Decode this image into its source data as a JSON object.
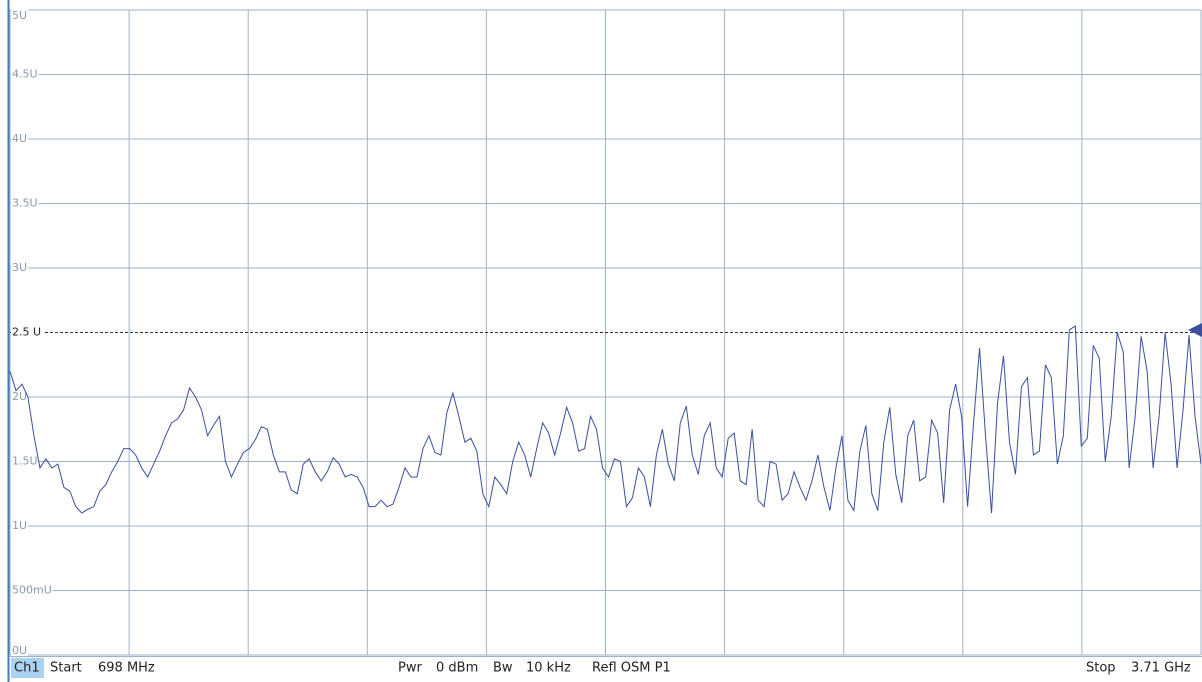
{
  "chart_data": {
    "type": "line",
    "ylim": [
      0,
      5
    ],
    "yticks": [
      {
        "value": 0,
        "label": "0U"
      },
      {
        "value": 0.5,
        "label": "500mU"
      },
      {
        "value": 1,
        "label": "1U"
      },
      {
        "value": 1.5,
        "label": "1.5U"
      },
      {
        "value": 2,
        "label": "2U"
      },
      {
        "value": 3,
        "label": "3U"
      },
      {
        "value": 3.5,
        "label": "3.5U"
      },
      {
        "value": 4,
        "label": "4U"
      },
      {
        "value": 4.5,
        "label": "4.5U"
      },
      {
        "value": 5,
        "label": "5U"
      }
    ],
    "grid": true,
    "x_divisions": 10,
    "limit_line": {
      "value": 2.5,
      "label": "2.5 U"
    },
    "color": "#3b4f9c",
    "values": [
      2.2,
      2.05,
      2.1,
      2.0,
      1.7,
      1.45,
      1.52,
      1.45,
      1.48,
      1.3,
      1.27,
      1.15,
      1.1,
      1.13,
      1.15,
      1.27,
      1.32,
      1.42,
      1.5,
      1.6,
      1.6,
      1.55,
      1.45,
      1.38,
      1.48,
      1.58,
      1.7,
      1.8,
      1.83,
      1.9,
      2.07,
      2.0,
      1.9,
      1.7,
      1.78,
      1.85,
      1.5,
      1.38,
      1.48,
      1.57,
      1.6,
      1.67,
      1.77,
      1.75,
      1.55,
      1.42,
      1.42,
      1.28,
      1.25,
      1.48,
      1.52,
      1.42,
      1.35,
      1.42,
      1.53,
      1.48,
      1.38,
      1.4,
      1.38,
      1.3,
      1.15,
      1.15,
      1.2,
      1.15,
      1.17,
      1.3,
      1.45,
      1.38,
      1.38,
      1.6,
      1.7,
      1.57,
      1.55,
      1.88,
      2.03,
      1.85,
      1.65,
      1.68,
      1.58,
      1.25,
      1.15,
      1.38,
      1.32,
      1.25,
      1.5,
      1.65,
      1.55,
      1.38,
      1.6,
      1.8,
      1.72,
      1.55,
      1.72,
      1.92,
      1.8,
      1.58,
      1.6,
      1.85,
      1.75,
      1.45,
      1.38,
      1.52,
      1.5,
      1.15,
      1.22,
      1.45,
      1.38,
      1.15,
      1.55,
      1.75,
      1.48,
      1.35,
      1.8,
      1.93,
      1.55,
      1.4,
      1.7,
      1.8,
      1.45,
      1.38,
      1.68,
      1.72,
      1.35,
      1.32,
      1.75,
      1.2,
      1.15,
      1.5,
      1.48,
      1.2,
      1.25,
      1.42,
      1.3,
      1.2,
      1.35,
      1.55,
      1.3,
      1.12,
      1.45,
      1.7,
      1.2,
      1.12,
      1.58,
      1.78,
      1.25,
      1.12,
      1.65,
      1.92,
      1.4,
      1.18,
      1.7,
      1.82,
      1.35,
      1.38,
      1.82,
      1.72,
      1.18,
      1.9,
      2.1,
      1.85,
      1.15,
      1.8,
      2.38,
      1.7,
      1.1,
      1.95,
      2.32,
      1.65,
      1.4,
      2.08,
      2.15,
      1.55,
      1.58,
      2.25,
      2.15,
      1.48,
      1.7,
      2.52,
      2.55,
      1.62,
      1.68,
      2.4,
      2.3,
      1.5,
      1.85,
      2.5,
      2.35,
      1.45,
      1.85,
      2.47,
      2.2,
      1.45,
      1.85,
      2.5,
      2.1,
      1.45,
      1.9,
      2.48,
      1.85,
      1.48
    ]
  },
  "status": {
    "channel": "Ch1",
    "start_label": "Start",
    "start": "698 MHz",
    "power_label": "Pwr",
    "power": "0 dBm",
    "bw_label": "Bw",
    "bw": "10 kHz",
    "meas": "Refl OSM P1",
    "stop_label": "Stop",
    "stop": "3.71 GHz"
  }
}
